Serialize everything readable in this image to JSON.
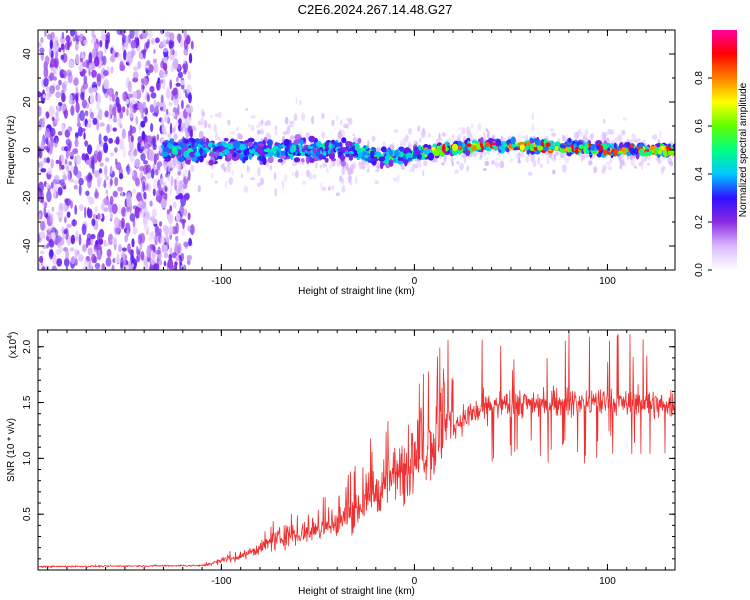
{
  "title": "C2E6.2024.267.14.48.G27",
  "chart_data": [
    {
      "type": "heatmap",
      "xlabel": "Height of straight line (km)",
      "ylabel": "Frequency (Hz)",
      "xlim": [
        -195,
        135
      ],
      "ylim": [
        -50,
        50
      ],
      "x_ticks": [
        -100,
        0,
        100
      ],
      "y_ticks": [
        -40,
        -20,
        0,
        20,
        40
      ],
      "colorbar": {
        "label": "Normalized spectral amplitude",
        "range": [
          0,
          1
        ],
        "ticks": [
          0.0,
          0.2,
          0.4,
          0.6,
          0.8
        ],
        "colors": [
          "#ffffff",
          "#d9b8ff",
          "#8a2be2",
          "#3010ff",
          "#00c8ff",
          "#00ff80",
          "#60ff00",
          "#ffff00",
          "#ff8000",
          "#ff0000",
          "#ff00a0"
        ]
      },
      "band": {
        "center_hz": [
          [
            -130,
            0
          ],
          [
            -100,
            0
          ],
          [
            -60,
            0
          ],
          [
            -30,
            0
          ],
          [
            -20,
            -3
          ],
          [
            0,
            -2
          ],
          [
            10,
            0
          ],
          [
            40,
            2
          ],
          [
            80,
            1
          ],
          [
            100,
            0
          ],
          [
            135,
            0
          ]
        ],
        "noise_region_x": [
          -195,
          -115
        ]
      }
    },
    {
      "type": "line",
      "xlabel": "Height of straight line (km)",
      "ylabel": "SNR (10 * v/v)",
      "yscale_label": "(x10",
      "yscale_exp": "4",
      "yscale_close": ")",
      "xlim": [
        -195,
        135
      ],
      "ylim": [
        0,
        2.15
      ],
      "x_ticks": [
        -100,
        0,
        100
      ],
      "y_ticks": [
        0.5,
        1.0,
        1.5,
        2.0
      ],
      "color": "#f03030",
      "envelope": [
        [
          -195,
          0.03
        ],
        [
          -110,
          0.04
        ],
        [
          -100,
          0.08
        ],
        [
          -90,
          0.12
        ],
        [
          -80,
          0.2
        ],
        [
          -70,
          0.28
        ],
        [
          -60,
          0.32
        ],
        [
          -50,
          0.35
        ],
        [
          -40,
          0.42
        ],
        [
          -30,
          0.55
        ],
        [
          -20,
          0.72
        ],
        [
          -10,
          0.85
        ],
        [
          0,
          0.98
        ],
        [
          10,
          1.15
        ],
        [
          20,
          1.3
        ],
        [
          30,
          1.4
        ],
        [
          40,
          1.47
        ],
        [
          60,
          1.5
        ],
        [
          100,
          1.5
        ],
        [
          135,
          1.48
        ]
      ]
    }
  ]
}
